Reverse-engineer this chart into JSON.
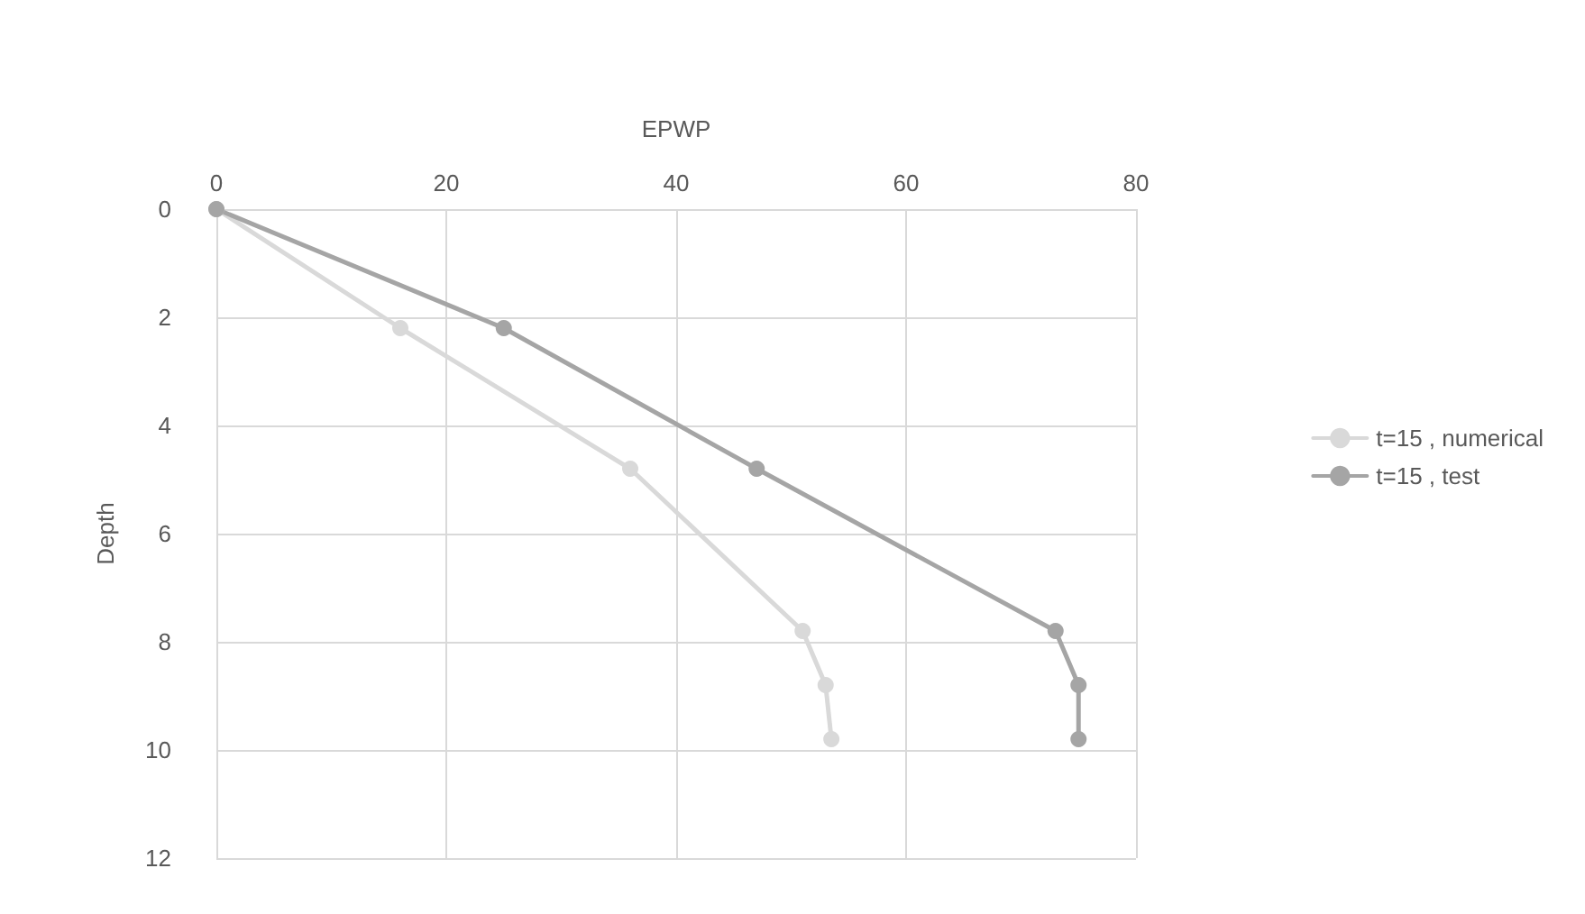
{
  "chart_data": {
    "type": "line",
    "xlabel": "EPWP",
    "ylabel": "Depth",
    "xlim": [
      0,
      80
    ],
    "xticks": [
      0,
      20,
      40,
      60,
      80
    ],
    "ylim": [
      12,
      0
    ],
    "yticks": [
      0,
      2,
      4,
      6,
      8,
      10,
      12
    ],
    "grid": true,
    "legend": "right",
    "marker": "circle",
    "line_style": "solid",
    "series": [
      {
        "name": "t=15 , numerical",
        "color": "#d9d9d9",
        "x": [
          0,
          16,
          36,
          51,
          53,
          53.5
        ],
        "values": [
          0,
          2.2,
          4.8,
          7.8,
          8.8,
          9.8
        ]
      },
      {
        "name": "t=15 , test",
        "color": "#a5a5a5",
        "x": [
          0,
          25,
          47,
          73,
          75,
          75
        ],
        "values": [
          0,
          2.2,
          4.8,
          7.8,
          8.8,
          9.8
        ]
      }
    ]
  }
}
